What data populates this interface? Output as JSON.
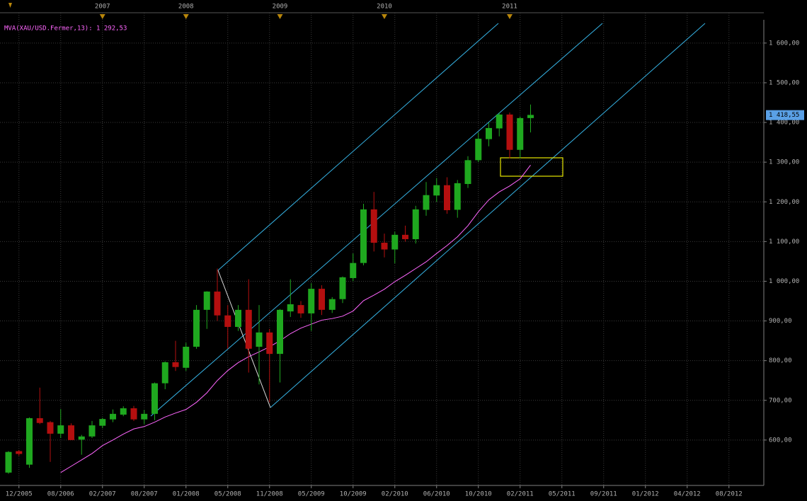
{
  "chart_data": {
    "type": "candlestick",
    "colors": {
      "up": "#1fa81f",
      "down": "#b40f0f",
      "grid": "#3a3a3a",
      "axis": "#808080",
      "marker": "#b8860b",
      "price_tag": "#5aa0e6"
    },
    "ylim": [
      491,
      1655
    ],
    "yticks": [
      {
        "value": 600,
        "label": "600,00"
      },
      {
        "value": 700,
        "label": "700,00"
      },
      {
        "value": 800,
        "label": "800,00"
      },
      {
        "value": 900,
        "label": "900,00"
      },
      {
        "value": 1000,
        "label": "1 000,00"
      },
      {
        "value": 1100,
        "label": "1 100,00"
      },
      {
        "value": 1200,
        "label": "1 200,00"
      },
      {
        "value": 1300,
        "label": "1 300,00"
      },
      {
        "value": 1400,
        "label": "1 400,00"
      },
      {
        "value": 1500,
        "label": "1 500,00"
      },
      {
        "value": 1600,
        "label": "1 600,00"
      }
    ],
    "grid": true,
    "categories": [
      null,
      "12/2005",
      null,
      null,
      null,
      "08/2006",
      null,
      null,
      null,
      "02/2007",
      null,
      null,
      null,
      "08/2007",
      null,
      null,
      null,
      "01/2008",
      null,
      null,
      null,
      "05/2008",
      null,
      null,
      null,
      "11/2008",
      null,
      null,
      null,
      "05/2009",
      null,
      null,
      null,
      "10/2009",
      null,
      null,
      null,
      "02/2010",
      null,
      null,
      null,
      "06/2010",
      null,
      null,
      null,
      "10/2010",
      null,
      null,
      null,
      "02/2011",
      null,
      null,
      null,
      "05/2011",
      null,
      null,
      null,
      "09/2011",
      null,
      null,
      null,
      "01/2012",
      null,
      null,
      null,
      "04/2012",
      null,
      null,
      null,
      "08/2012",
      null,
      null
    ],
    "year_labels": [
      null,
      null,
      null,
      null,
      null,
      null,
      null,
      null,
      null,
      "2007",
      null,
      null,
      null,
      null,
      null,
      null,
      null,
      "2008",
      null,
      null,
      null,
      null,
      null,
      null,
      null,
      null,
      "2009",
      null,
      null,
      null,
      null,
      null,
      null,
      null,
      null,
      null,
      "2010",
      null,
      null,
      null,
      null,
      null,
      null,
      null,
      null,
      null,
      null,
      null,
      "2011",
      null,
      null,
      null,
      null,
      null,
      null,
      null,
      null,
      null,
      null,
      null,
      null,
      null,
      null,
      null,
      null,
      null,
      null,
      null,
      null,
      null,
      null,
      null
    ],
    "open": [
      518,
      572,
      538,
      655,
      645,
      616,
      637,
      601,
      609,
      636,
      652,
      664,
      680,
      652,
      666,
      743,
      796,
      782,
      835,
      928,
      974,
      914,
      885,
      928,
      835,
      871,
      817,
      924,
      940,
      919,
      981,
      928,
      955,
      1008,
      1046,
      1181,
      1097,
      1080,
      1117,
      1106,
      1180,
      1216,
      1242,
      1180,
      1245,
      1305,
      1358,
      1385,
      1420,
      1331,
      1411,
      null,
      null,
      null,
      null,
      null,
      null,
      null,
      null,
      null,
      null,
      null,
      null,
      null,
      null,
      null,
      null,
      null,
      null,
      null,
      null,
      null
    ],
    "high": [
      572,
      575,
      657,
      732,
      648,
      678,
      642,
      613,
      648,
      656,
      677,
      685,
      686,
      676,
      745,
      798,
      850,
      845,
      940,
      975,
      1032,
      940,
      940,
      1005,
      940,
      880,
      930,
      1005,
      950,
      995,
      990,
      960,
      1012,
      1070,
      1195,
      1225,
      1120,
      1125,
      1140,
      1190,
      1250,
      1260,
      1262,
      1255,
      1315,
      1375,
      1400,
      1425,
      1425,
      1415,
      1445,
      null,
      null,
      null,
      null,
      null,
      null,
      null,
      null,
      null,
      null,
      null,
      null,
      null,
      null,
      null,
      null,
      null,
      null,
      null,
      null,
      null
    ],
    "low": [
      515,
      560,
      530,
      640,
      545,
      605,
      600,
      563,
      605,
      630,
      645,
      660,
      648,
      640,
      650,
      728,
      774,
      774,
      830,
      880,
      900,
      830,
      875,
      770,
      740,
      695,
      745,
      910,
      908,
      875,
      915,
      920,
      945,
      1000,
      1040,
      1075,
      1060,
      1045,
      1100,
      1095,
      1165,
      1200,
      1170,
      1160,
      1235,
      1300,
      1340,
      1365,
      1310,
      1310,
      1375,
      null,
      null,
      null,
      null,
      null,
      null,
      null,
      null,
      null,
      null,
      null,
      null,
      null,
      null,
      null,
      null,
      null,
      null,
      null,
      null,
      null
    ],
    "close": [
      570,
      565,
      655,
      643,
      616,
      637,
      600,
      609,
      637,
      653,
      666,
      680,
      652,
      666,
      743,
      796,
      784,
      835,
      928,
      974,
      914,
      885,
      928,
      830,
      871,
      817,
      928,
      942,
      919,
      981,
      928,
      955,
      1010,
      1046,
      1181,
      1097,
      1080,
      1117,
      1106,
      1181,
      1217,
      1242,
      1179,
      1247,
      1305,
      1359,
      1386,
      1420,
      1331,
      1411,
      1419,
      null,
      null,
      null,
      null,
      null,
      null,
      null,
      null,
      null,
      null,
      null,
      null,
      null,
      null,
      null,
      null,
      null,
      null,
      null,
      null,
      null
    ],
    "moving_average": {
      "label": "MVA(XAU/USD.Fermer,13): 1 292,53",
      "color": "#ff66ff",
      "values": [
        null,
        null,
        null,
        null,
        null,
        518,
        534,
        550,
        566,
        586,
        600,
        615,
        628,
        634,
        645,
        658,
        668,
        677,
        695,
        719,
        750,
        775,
        795,
        810,
        822,
        835,
        850,
        868,
        882,
        892,
        902,
        906,
        912,
        925,
        951,
        965,
        980,
        999,
        1015,
        1032,
        1049,
        1070,
        1090,
        1112,
        1140,
        1175,
        1205,
        1225,
        1240,
        1258,
        1292.53,
        null,
        null,
        null,
        null,
        null,
        null,
        null,
        null,
        null,
        null,
        null,
        null,
        null,
        null,
        null,
        null,
        null,
        null,
        null,
        null,
        null
      ]
    },
    "last_price": {
      "value": 1418.55,
      "label": "1 418,55"
    }
  }
}
